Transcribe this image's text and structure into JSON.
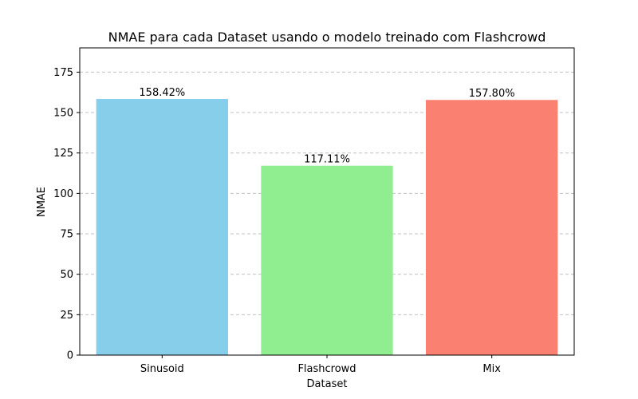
{
  "chart_data": {
    "type": "bar",
    "title": "NMAE para cada Dataset usando o modelo treinado com Flashcrowd",
    "xlabel": "Dataset",
    "ylabel": "NMAE",
    "categories": [
      "Sinusoid",
      "Flashcrowd",
      "Mix"
    ],
    "values": [
      158.42,
      117.11,
      157.8
    ],
    "data_labels": [
      "158.42%",
      "117.11%",
      "157.80%"
    ],
    "colors": [
      "#87ceeb",
      "#90ee90",
      "#fa8072"
    ],
    "ylim": [
      0,
      190
    ],
    "yticks": [
      0,
      25,
      50,
      75,
      100,
      125,
      150,
      175
    ],
    "grid": {
      "axis": "y",
      "style": "dashed"
    }
  }
}
